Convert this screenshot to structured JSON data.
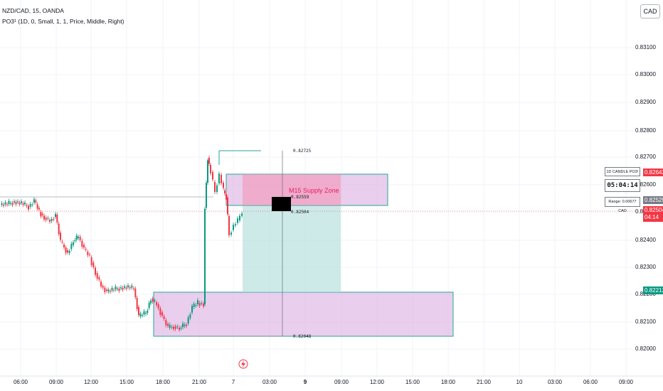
{
  "header": {
    "symbol_line": "NZD/CAD, 15, OANDA",
    "indicator_line": "PO3¹ (1D, 0, Small, 1, 1, Price, Middle, Right)"
  },
  "currency_button": "CAD",
  "y_axis": {
    "labels": [
      "0.83100",
      "0.83000",
      "0.82900",
      "0.82800",
      "0.82700",
      "0.82600",
      "0.82500",
      "0.82400",
      "0.82300",
      "0.82200",
      "0.82100",
      "0.82000"
    ]
  },
  "x_axis": {
    "labels": [
      {
        "text": "06:00",
        "bold": false
      },
      {
        "text": "09:00",
        "bold": false
      },
      {
        "text": "12:00",
        "bold": false
      },
      {
        "text": "15:00",
        "bold": false
      },
      {
        "text": "18:00",
        "bold": false
      },
      {
        "text": "21:00",
        "bold": false
      },
      {
        "text": "7",
        "bold": false
      },
      {
        "text": "03:00",
        "bold": false
      },
      {
        "text": "9",
        "bold": true
      },
      {
        "text": "09:00",
        "bold": false
      },
      {
        "text": "12:00",
        "bold": false
      },
      {
        "text": "15:00",
        "bold": false
      },
      {
        "text": "18:00",
        "bold": false
      },
      {
        "text": "21:00",
        "bold": false
      },
      {
        "text": "10",
        "bold": false
      },
      {
        "text": "03:00",
        "bold": false
      },
      {
        "text": "06:00",
        "bold": false
      },
      {
        "text": "09:00",
        "bold": false
      }
    ]
  },
  "price_tags": {
    "high": {
      "value": "0.82643",
      "color": "#f23645"
    },
    "mid": {
      "value": "0.82525",
      "color": "#787b86"
    },
    "current": {
      "value": "0.82504",
      "countdown": "04:14",
      "color": "#f23645"
    },
    "low": {
      "value": "0.82212",
      "color": "#089981"
    }
  },
  "po3_panel": {
    "title": "1D CANDLE PO3¹",
    "countdown": "05:04:14",
    "range": "Range: 0.00677 CAD"
  },
  "annotations": {
    "supply_zone_label": "M15 Supply Zone",
    "level_high": "0.82725",
    "level_mid": "0.82559",
    "level_mid2": "0.82504",
    "level_low": "0.82048"
  },
  "colors": {
    "up": "#089981",
    "down": "#f23645",
    "zone_fill": "#e1bee7",
    "zone_border": "#26a69a",
    "target_fill": "#b2dfdb",
    "stop_fill": "#f48fb1",
    "supply_text": "#e91e63"
  },
  "icons": {
    "event_icon": "lightning-icon"
  }
}
